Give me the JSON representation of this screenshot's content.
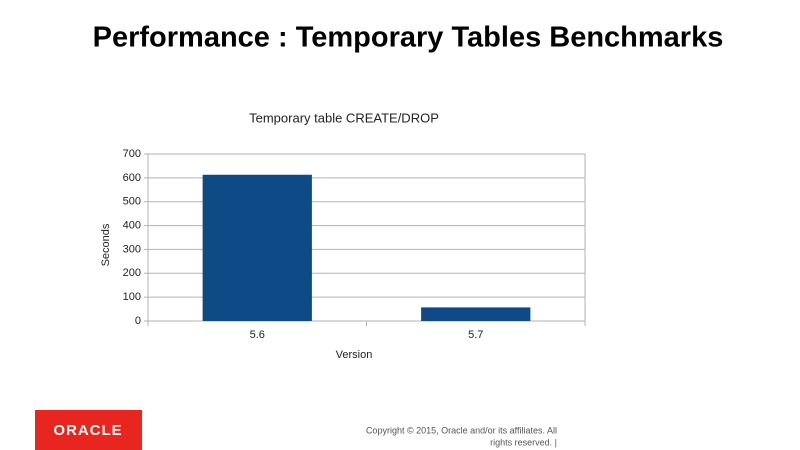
{
  "slide": {
    "title": "Performance : Temporary Tables Benchmarks",
    "logo": "ORACLE",
    "footer": [
      "Copyright © 2015, Oracle and/or its affiliates. All",
      "rights reserved.  |"
    ]
  },
  "chart_data": {
    "type": "bar",
    "title": "Temporary table CREATE/DROP",
    "x_label": "Version",
    "y_label": "Seconds",
    "categories": [
      "5.6",
      "5.7"
    ],
    "values": [
      613,
      57
    ],
    "color": "#0e4a86",
    "ylim": [
      0,
      700
    ],
    "yticks": [
      0,
      100,
      200,
      300,
      400,
      500,
      600,
      700
    ],
    "grid": true
  }
}
